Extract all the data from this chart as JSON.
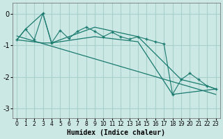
{
  "xlabel": "Humidex (Indice chaleur)",
  "xlim": [
    -0.5,
    23.5
  ],
  "ylim": [
    -3.3,
    0.35
  ],
  "yticks": [
    0,
    -1,
    -2,
    -3
  ],
  "xticks": [
    0,
    1,
    2,
    3,
    4,
    5,
    6,
    7,
    8,
    9,
    10,
    11,
    12,
    13,
    14,
    15,
    16,
    17,
    18,
    19,
    20,
    21,
    22,
    23
  ],
  "bg_color": "#cce8e5",
  "grid_color": "#a8d0cd",
  "line_color": "#1a7a6e",
  "main_x": [
    0,
    1,
    2,
    3,
    4,
    5,
    6,
    7,
    8,
    9,
    10,
    11,
    12,
    13,
    14,
    15,
    16,
    17,
    18,
    19,
    20,
    21,
    22,
    23
  ],
  "main_y": [
    -0.82,
    -0.48,
    -0.82,
    0.02,
    -0.92,
    -0.52,
    -0.78,
    -0.55,
    -0.42,
    -0.55,
    -0.72,
    -0.58,
    -0.72,
    -0.8,
    -0.72,
    -0.8,
    -0.88,
    -0.95,
    -2.55,
    -2.08,
    -1.88,
    -2.08,
    -2.28,
    -2.38
  ],
  "upper_x": [
    0,
    1,
    3,
    4,
    9,
    14,
    19,
    22,
    23
  ],
  "upper_y": [
    -0.82,
    -0.48,
    0.02,
    -0.92,
    -0.42,
    -0.72,
    -2.08,
    -2.28,
    -2.38
  ],
  "lower_x": [
    0,
    3,
    4,
    9,
    14,
    18,
    23
  ],
  "lower_y": [
    -0.82,
    -0.92,
    -0.92,
    -0.72,
    -0.88,
    -2.55,
    -2.38
  ],
  "trend_x": [
    0,
    23
  ],
  "trend_y": [
    -0.7,
    -2.55
  ]
}
